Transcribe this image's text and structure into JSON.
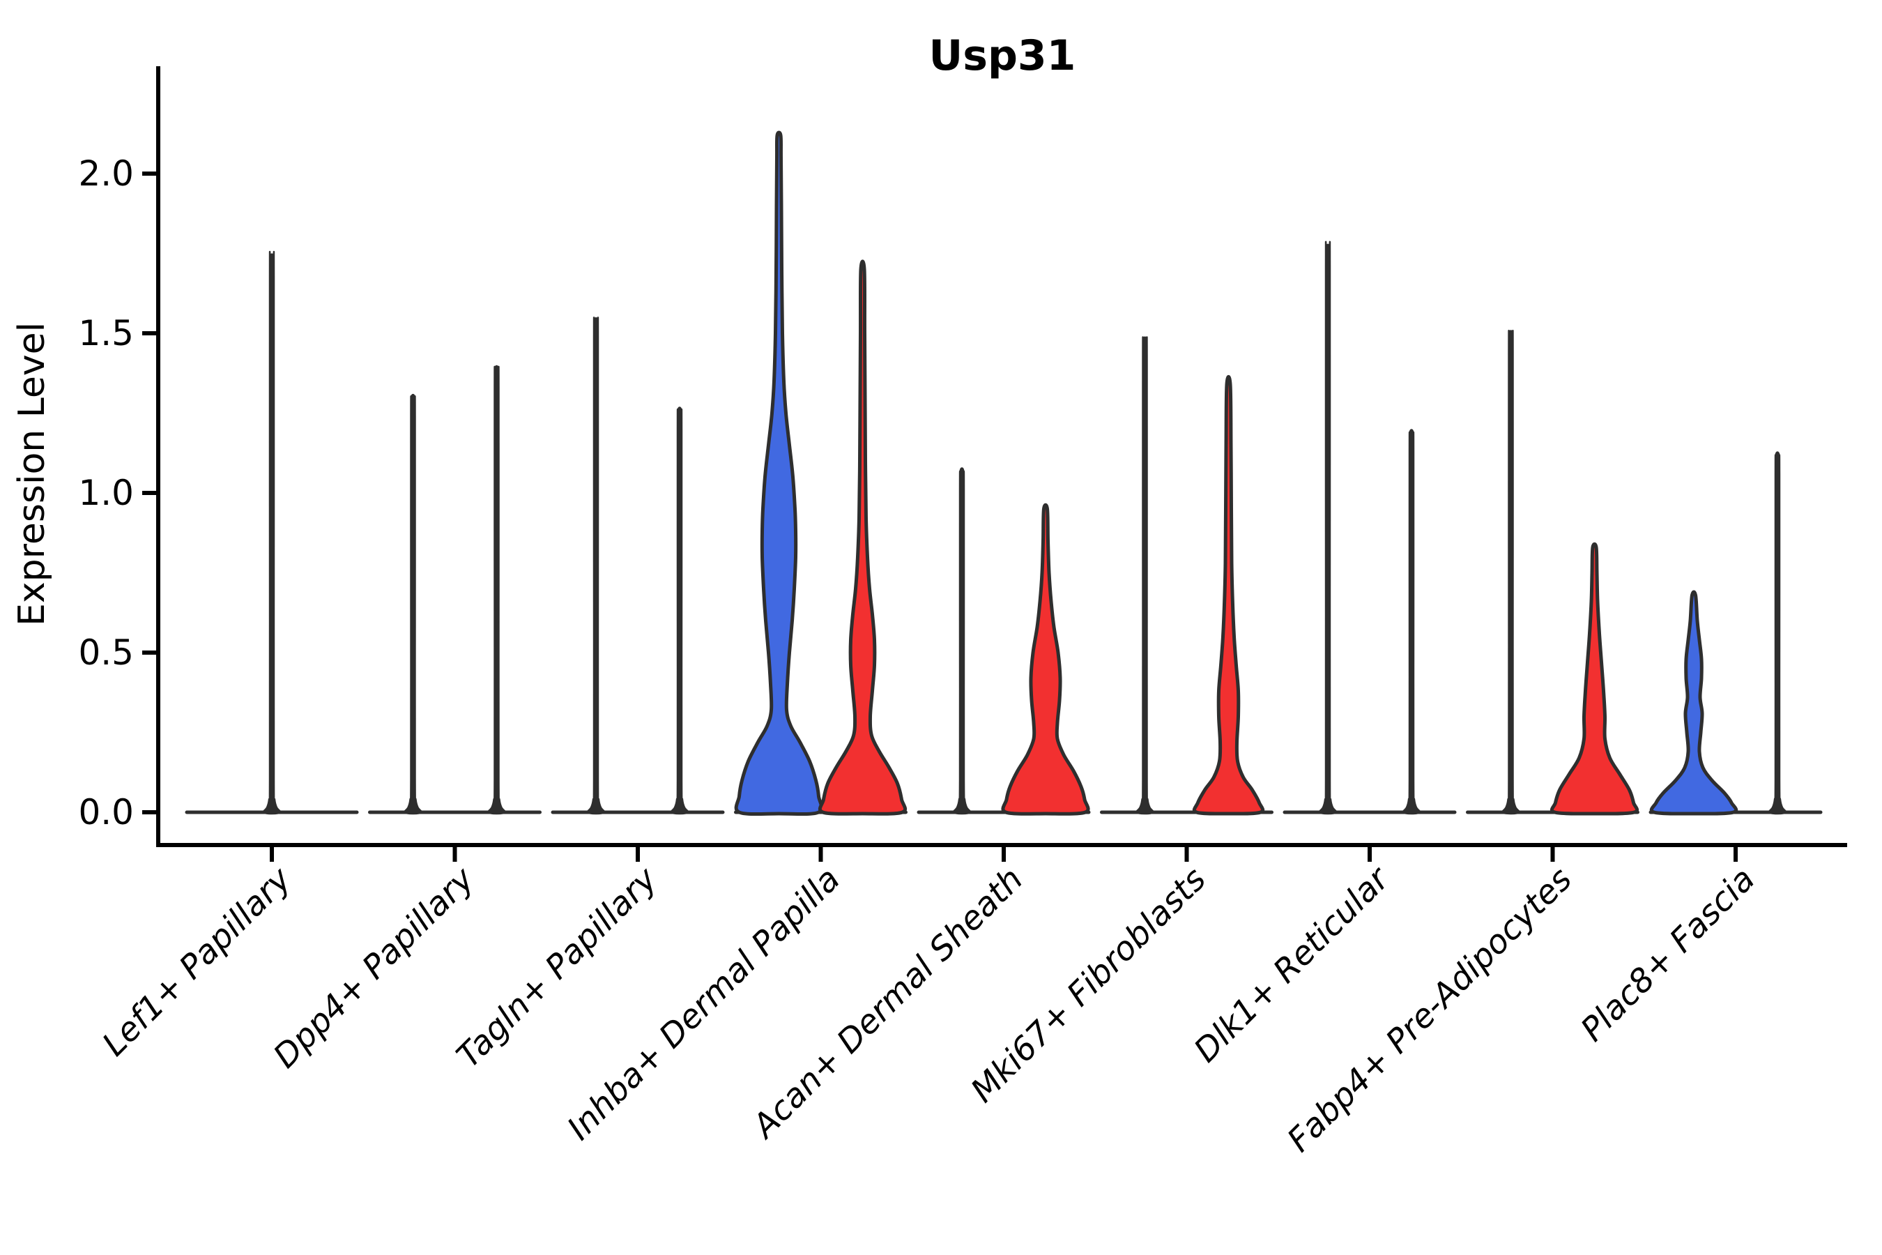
{
  "chart_data": {
    "type": "violin",
    "title": "Usp31",
    "xlabel": "",
    "ylabel": "Expression Level",
    "yticks": [
      {
        "value": 0.0,
        "label": "0.0"
      },
      {
        "value": 0.5,
        "label": "0.5"
      },
      {
        "value": 1.0,
        "label": "1.0"
      },
      {
        "value": 1.5,
        "label": "1.5"
      },
      {
        "value": 2.0,
        "label": "2.0"
      }
    ],
    "ylim": [
      -0.1,
      2.35
    ],
    "grid": false,
    "legend": "none",
    "colors": {
      "blue_group": "#4169E1",
      "red_group": "#F23030",
      "outline": "#2E2E2E",
      "axis": "#000000",
      "background": "#ffffff"
    },
    "categories": [
      "Lef1+ Papillary",
      "Dpp4+ Papillary",
      "Tagln+ Papillary",
      "Inhba+ Dermal Papilla",
      "Acan+ Dermal Sheath",
      "Mki67+ Fibroblasts",
      "Dlk1+ Reticular",
      "Fabp4+ Pre-Adipocytes",
      "Plac8+ Fascia"
    ],
    "violins": [
      {
        "category": "Lef1+ Papillary",
        "side": "center",
        "kind": "spike",
        "group": "none",
        "max_expression": 1.74
      },
      {
        "category": "Dpp4+ Papillary",
        "side": "left",
        "kind": "spike",
        "group": "none",
        "max_expression": 1.3
      },
      {
        "category": "Dpp4+ Papillary",
        "side": "right",
        "kind": "spike",
        "group": "none",
        "max_expression": 1.39
      },
      {
        "category": "Tagln+ Papillary",
        "side": "left",
        "kind": "spike",
        "group": "none",
        "max_expression": 1.54
      },
      {
        "category": "Tagln+ Papillary",
        "side": "right",
        "kind": "spike",
        "group": "none",
        "max_expression": 1.26
      },
      {
        "category": "Inhba+ Dermal Papilla",
        "side": "left",
        "kind": "violin",
        "group": "blue_group",
        "max_expression": 2.12,
        "profile": [
          [
            0,
            57
          ],
          [
            0.05,
            57
          ],
          [
            0.1,
            53
          ],
          [
            0.16,
            44
          ],
          [
            0.22,
            30
          ],
          [
            0.27,
            17
          ],
          [
            0.32,
            11
          ],
          [
            0.4,
            12
          ],
          [
            0.5,
            15
          ],
          [
            0.6,
            19
          ],
          [
            0.7,
            22
          ],
          [
            0.8,
            24
          ],
          [
            0.88,
            24
          ],
          [
            0.95,
            23
          ],
          [
            1.05,
            20
          ],
          [
            1.15,
            15
          ],
          [
            1.25,
            10
          ],
          [
            1.35,
            7
          ],
          [
            1.5,
            5
          ],
          [
            1.7,
            4
          ],
          [
            1.9,
            3.5
          ],
          [
            2.05,
            3
          ],
          [
            2.12,
            2.5
          ]
        ]
      },
      {
        "category": "Inhba+ Dermal Papilla",
        "side": "right",
        "kind": "violin",
        "group": "red_group",
        "max_expression": 1.7,
        "profile": [
          [
            0,
            57
          ],
          [
            0.04,
            56
          ],
          [
            0.09,
            50
          ],
          [
            0.14,
            38
          ],
          [
            0.19,
            24
          ],
          [
            0.24,
            13
          ],
          [
            0.3,
            11
          ],
          [
            0.38,
            14
          ],
          [
            0.46,
            17
          ],
          [
            0.54,
            17
          ],
          [
            0.62,
            14
          ],
          [
            0.7,
            10
          ],
          [
            0.8,
            7
          ],
          [
            0.92,
            5
          ],
          [
            1.1,
            4
          ],
          [
            1.3,
            3.5
          ],
          [
            1.5,
            3
          ],
          [
            1.7,
            2.5
          ]
        ]
      },
      {
        "category": "Acan+ Dermal Sheath",
        "side": "left",
        "kind": "spike",
        "group": "none",
        "max_expression": 1.07
      },
      {
        "category": "Acan+ Dermal Sheath",
        "side": "right",
        "kind": "violin",
        "group": "red_group",
        "max_expression": 0.95,
        "profile": [
          [
            0,
            57
          ],
          [
            0.04,
            56
          ],
          [
            0.08,
            51
          ],
          [
            0.13,
            40
          ],
          [
            0.18,
            26
          ],
          [
            0.23,
            17
          ],
          [
            0.28,
            17
          ],
          [
            0.35,
            20
          ],
          [
            0.42,
            21
          ],
          [
            0.5,
            18
          ],
          [
            0.58,
            12
          ],
          [
            0.66,
            8
          ],
          [
            0.75,
            5
          ],
          [
            0.85,
            3.5
          ],
          [
            0.95,
            2.5
          ]
        ]
      },
      {
        "category": "Mki67+ Fibroblasts",
        "side": "left",
        "kind": "spike",
        "group": "none",
        "max_expression": 1.48
      },
      {
        "category": "Mki67+ Fibroblasts",
        "side": "right",
        "kind": "violin",
        "group": "red_group",
        "max_expression": 1.34,
        "profile": [
          [
            0,
            46
          ],
          [
            0.03,
            44
          ],
          [
            0.07,
            34
          ],
          [
            0.11,
            21
          ],
          [
            0.16,
            13
          ],
          [
            0.22,
            12
          ],
          [
            0.3,
            14
          ],
          [
            0.38,
            14
          ],
          [
            0.46,
            11
          ],
          [
            0.55,
            8
          ],
          [
            0.65,
            6
          ],
          [
            0.78,
            4.5
          ],
          [
            0.95,
            4
          ],
          [
            1.15,
            3.5
          ],
          [
            1.34,
            2.5
          ]
        ]
      },
      {
        "category": "Dlk1+ Reticular",
        "side": "left",
        "kind": "spike",
        "group": "none",
        "max_expression": 1.77
      },
      {
        "category": "Dlk1+ Reticular",
        "side": "right",
        "kind": "spike",
        "group": "none",
        "max_expression": 1.19
      },
      {
        "category": "Fabp4+ Pre-Adipocytes",
        "side": "left",
        "kind": "spike",
        "group": "none",
        "max_expression": 1.5
      },
      {
        "category": "Fabp4+ Pre-Adipocytes",
        "side": "right",
        "kind": "violin",
        "group": "red_group",
        "max_expression": 0.83,
        "profile": [
          [
            0,
            57
          ],
          [
            0.03,
            56
          ],
          [
            0.07,
            50
          ],
          [
            0.12,
            36
          ],
          [
            0.17,
            22
          ],
          [
            0.23,
            15
          ],
          [
            0.3,
            15
          ],
          [
            0.38,
            13
          ],
          [
            0.47,
            10
          ],
          [
            0.56,
            7
          ],
          [
            0.66,
            4.5
          ],
          [
            0.75,
            3.5
          ],
          [
            0.83,
            2.5
          ]
        ]
      },
      {
        "category": "Plac8+ Fascia",
        "side": "left",
        "kind": "violin",
        "group": "blue_group",
        "max_expression": 0.68,
        "profile": [
          [
            0,
            57
          ],
          [
            0.03,
            54
          ],
          [
            0.06,
            44
          ],
          [
            0.1,
            26
          ],
          [
            0.14,
            13
          ],
          [
            0.19,
            8
          ],
          [
            0.25,
            10
          ],
          [
            0.31,
            12
          ],
          [
            0.36,
            9
          ],
          [
            0.42,
            11
          ],
          [
            0.48,
            11
          ],
          [
            0.54,
            8
          ],
          [
            0.6,
            5
          ],
          [
            0.68,
            2.5
          ]
        ]
      },
      {
        "category": "Plac8+ Fascia",
        "side": "right",
        "kind": "spike",
        "group": "none",
        "max_expression": 1.12
      }
    ]
  }
}
